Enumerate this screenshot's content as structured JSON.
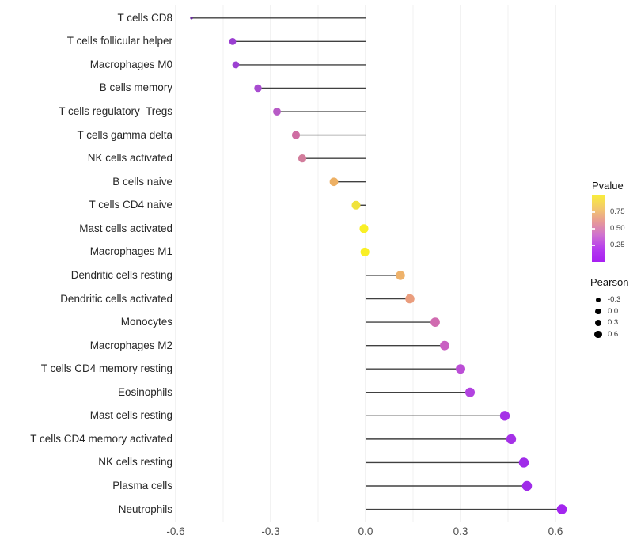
{
  "page": {
    "background": "#ffffff"
  },
  "chart_data": {
    "type": "lollipop",
    "title": "",
    "xlabel": "",
    "ylabel": "",
    "x_ticks": [
      -0.6,
      -0.3,
      0.0,
      0.3,
      0.6
    ],
    "x_tick_labels": [
      "-0.6",
      "-0.3",
      "0.0",
      "0.3",
      "0.6"
    ],
    "x_minor_gridlines": [
      -0.45,
      -0.15,
      0.15,
      0.45
    ],
    "xlim": [
      -0.64,
      0.68
    ],
    "grid": true,
    "legend_position": "right",
    "stem_color": "#404040",
    "points": [
      {
        "label": "T cells CD8",
        "pearson": -0.55,
        "color": "#6b2d9e"
      },
      {
        "label": "T cells follicular helper",
        "pearson": -0.42,
        "color": "#9a3ed1"
      },
      {
        "label": "Macrophages M0",
        "pearson": -0.41,
        "color": "#9c40d2"
      },
      {
        "label": "B cells memory",
        "pearson": -0.34,
        "color": "#a84cd0"
      },
      {
        "label": "T cells regulatory  Tregs",
        "pearson": -0.28,
        "color": "#b75bc6"
      },
      {
        "label": "T cells gamma delta",
        "pearson": -0.22,
        "color": "#cf6da3"
      },
      {
        "label": "NK cells activated",
        "pearson": -0.2,
        "color": "#d27d9c"
      },
      {
        "label": "B cells naive",
        "pearson": -0.1,
        "color": "#edb064"
      },
      {
        "label": "T cells CD4 naive",
        "pearson": -0.03,
        "color": "#f0e23c"
      },
      {
        "label": "Mast cells activated",
        "pearson": -0.005,
        "color": "#f9ef25"
      },
      {
        "label": "Macrophages M1",
        "pearson": -0.002,
        "color": "#f9ef25"
      },
      {
        "label": "Dendritic cells resting",
        "pearson": 0.11,
        "color": "#eeb26b"
      },
      {
        "label": "Dendritic cells activated",
        "pearson": 0.14,
        "color": "#ea9d7d"
      },
      {
        "label": "Monocytes",
        "pearson": 0.22,
        "color": "#d06bb0"
      },
      {
        "label": "Macrophages M2",
        "pearson": 0.25,
        "color": "#c95fc2"
      },
      {
        "label": "T cells CD4 memory resting",
        "pearson": 0.3,
        "color": "#bb4ed6"
      },
      {
        "label": "Eosinophils",
        "pearson": 0.33,
        "color": "#b243e0"
      },
      {
        "label": "Mast cells resting",
        "pearson": 0.44,
        "color": "#a531e7"
      },
      {
        "label": "T cells CD4 memory activated",
        "pearson": 0.46,
        "color": "#a531e7"
      },
      {
        "label": "NK cells resting",
        "pearson": 0.5,
        "color": "#a02ce9"
      },
      {
        "label": "Plasma cells",
        "pearson": 0.51,
        "color": "#a02ce9"
      },
      {
        "label": "Neutrophils",
        "pearson": 0.62,
        "color": "#a326ef"
      }
    ]
  },
  "legend": {
    "pvalue": {
      "title": "Pvalue",
      "tick_labels": [
        "0.75",
        "0.50",
        "0.25"
      ],
      "gradient": [
        "#f9ee3a",
        "#f3c96c",
        "#e79a96",
        "#cf72cf",
        "#b63cee",
        "#a81ff2"
      ]
    },
    "pearson": {
      "title": "Pearson",
      "dot_color": "#000000",
      "items": [
        {
          "label": "-0.3"
        },
        {
          "label": "0.0"
        },
        {
          "label": "0.3"
        },
        {
          "label": "0.6"
        }
      ]
    }
  }
}
